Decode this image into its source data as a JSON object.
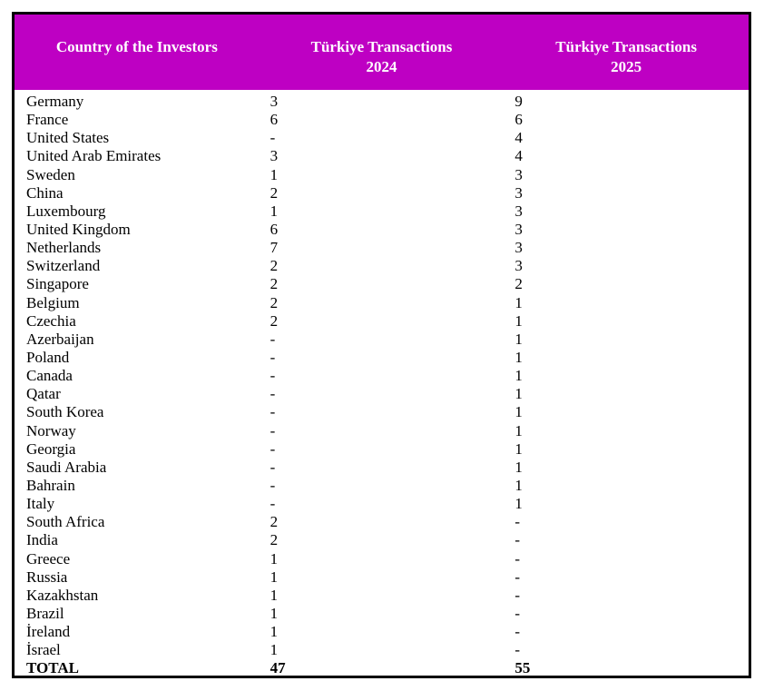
{
  "colors": {
    "header_bg": "#be00c3",
    "header_text": "#ffffff",
    "border": "#000000",
    "body_text": "#000000"
  },
  "table": {
    "header": {
      "col1_line1": "Country of the Investors",
      "col1_line2": "",
      "col2_line1": "Türkiye Transactions",
      "col2_line2": "2024",
      "col3_line1": "Türkiye Transactions",
      "col3_line2": "2025"
    },
    "rows": [
      {
        "country": "Germany",
        "y2024": "3",
        "y2025": "9"
      },
      {
        "country": "France",
        "y2024": "6",
        "y2025": "6"
      },
      {
        "country": "United States",
        "y2024": "-",
        "y2025": "4"
      },
      {
        "country": "United Arab Emirates",
        "y2024": "3",
        "y2025": "4"
      },
      {
        "country": "Sweden",
        "y2024": "1",
        "y2025": "3"
      },
      {
        "country": "China",
        "y2024": "2",
        "y2025": "3"
      },
      {
        "country": "Luxembourg",
        "y2024": "1",
        "y2025": "3"
      },
      {
        "country": "United Kingdom",
        "y2024": "6",
        "y2025": "3"
      },
      {
        "country": "Netherlands",
        "y2024": "7",
        "y2025": "3"
      },
      {
        "country": "Switzerland",
        "y2024": "2",
        "y2025": "3"
      },
      {
        "country": "Singapore",
        "y2024": "2",
        "y2025": "2"
      },
      {
        "country": "Belgium",
        "y2024": "2",
        "y2025": "1"
      },
      {
        "country": "Czechia",
        "y2024": "2",
        "y2025": "1"
      },
      {
        "country": "Azerbaijan",
        "y2024": "-",
        "y2025": "1"
      },
      {
        "country": "Poland",
        "y2024": "-",
        "y2025": "1"
      },
      {
        "country": "Canada",
        "y2024": "-",
        "y2025": "1"
      },
      {
        "country": "Qatar",
        "y2024": "-",
        "y2025": "1"
      },
      {
        "country": "South Korea",
        "y2024": "-",
        "y2025": "1"
      },
      {
        "country": "Norway",
        "y2024": "-",
        "y2025": "1"
      },
      {
        "country": "Georgia",
        "y2024": "-",
        "y2025": "1"
      },
      {
        "country": "Saudi Arabia",
        "y2024": "-",
        "y2025": "1"
      },
      {
        "country": "Bahrain",
        "y2024": "-",
        "y2025": "1"
      },
      {
        "country": "Italy",
        "y2024": "-",
        "y2025": "1"
      },
      {
        "country": "South Africa",
        "y2024": "2",
        "y2025": "-"
      },
      {
        "country": "India",
        "y2024": "2",
        "y2025": "-"
      },
      {
        "country": "Greece",
        "y2024": "1",
        "y2025": "-"
      },
      {
        "country": "Russia",
        "y2024": "1",
        "y2025": "-"
      },
      {
        "country": "Kazakhstan",
        "y2024": "1",
        "y2025": "-"
      },
      {
        "country": "Brazil",
        "y2024": "1",
        "y2025": "-"
      },
      {
        "country": "İreland",
        "y2024": "1",
        "y2025": "-"
      },
      {
        "country": "İsrael",
        "y2024": "1",
        "y2025": "-"
      }
    ],
    "total": {
      "label": "TOTAL",
      "y2024": "47",
      "y2025": "55"
    }
  }
}
